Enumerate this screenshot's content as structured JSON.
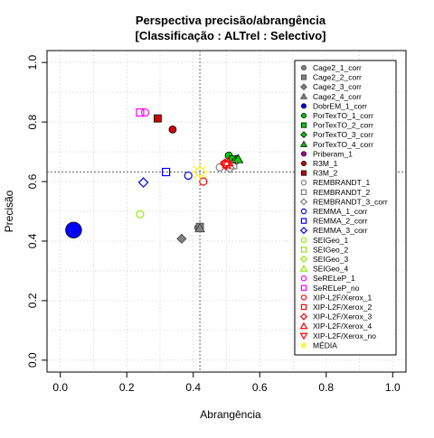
{
  "chart_data": {
    "type": "scatter",
    "title": "Perspectiva precisão/abrangência",
    "subtitle": "[Classificação : ALTrel : Selectivo]",
    "xlabel": "Abrangência",
    "ylabel": "Precisão",
    "xlim": [
      0,
      1
    ],
    "ylim": [
      0,
      1
    ],
    "x_ticks": [
      "0.0",
      "0.2",
      "0.4",
      "0.6",
      "0.8",
      "1.0"
    ],
    "y_ticks": [
      "0.0",
      "0.2",
      "0.4",
      "0.6",
      "0.8",
      "1.0"
    ],
    "grid": true,
    "legend_position": "right",
    "reference_lines": {
      "x": 0.42,
      "y": 0.632
    },
    "series": [
      {
        "name": "Cage2_1_corr",
        "shape": "circle",
        "filled": true,
        "color": "#808080",
        "points": [
          [
            0.415,
            0.445
          ]
        ]
      },
      {
        "name": "Cage2_2_corr",
        "shape": "square",
        "filled": true,
        "color": "#808080",
        "points": [
          [
            0.42,
            0.448
          ]
        ]
      },
      {
        "name": "Cage2_3_corr",
        "shape": "diamond",
        "filled": true,
        "color": "#808080",
        "points": [
          [
            0.365,
            0.408
          ]
        ]
      },
      {
        "name": "Cage2_4_corr",
        "shape": "triangle",
        "filled": true,
        "color": "#808080",
        "points": [
          [
            0.42,
            0.443
          ]
        ]
      },
      {
        "name": "DobrEM_1_corr",
        "shape": "circle",
        "filled": true,
        "color": "#0000ff",
        "size": 2.2,
        "points": [
          [
            0.04,
            0.437
          ]
        ]
      },
      {
        "name": "PorTexTO_1_corr",
        "shape": "circle",
        "filled": true,
        "color": "#00cc00",
        "points": [
          [
            0.507,
            0.687
          ]
        ]
      },
      {
        "name": "PorTexTO_2_corr",
        "shape": "square",
        "filled": true,
        "color": "#00cc00",
        "points": [
          [
            0.52,
            0.675
          ]
        ]
      },
      {
        "name": "PorTexTO_3_corr",
        "shape": "diamond",
        "filled": true,
        "color": "#00cc00",
        "points": [
          [
            0.53,
            0.672
          ]
        ]
      },
      {
        "name": "PorTexTO_4_corr",
        "shape": "triangle",
        "filled": true,
        "color": "#00cc00",
        "points": [
          [
            0.535,
            0.675
          ]
        ]
      },
      {
        "name": "Priberam_1",
        "shape": "circle",
        "filled": true,
        "color": "#aa00aa",
        "points": []
      },
      {
        "name": "R3M_1",
        "shape": "circle",
        "filled": true,
        "color": "#cc0000",
        "points": [
          [
            0.338,
            0.775
          ]
        ]
      },
      {
        "name": "R3M_2",
        "shape": "square",
        "filled": true,
        "color": "#cc0000",
        "points": [
          [
            0.293,
            0.812
          ]
        ]
      },
      {
        "name": "REMBRANDT_1",
        "shape": "circle",
        "filled": false,
        "color": "#808080",
        "points": [
          [
            0.48,
            0.648
          ]
        ]
      },
      {
        "name": "REMBRANDT_2",
        "shape": "square",
        "filled": false,
        "color": "#808080",
        "points": [
          [
            0.52,
            0.655
          ]
        ]
      },
      {
        "name": "REMBRANDT_3_corr",
        "shape": "diamond",
        "filled": false,
        "color": "#808080",
        "points": [
          [
            0.51,
            0.645
          ]
        ]
      },
      {
        "name": "REMMA_1_corr",
        "shape": "circle",
        "filled": false,
        "color": "#0000ff",
        "points": [
          [
            0.385,
            0.62
          ]
        ]
      },
      {
        "name": "REMMA_2_corr",
        "shape": "square",
        "filled": false,
        "color": "#0000ff",
        "points": [
          [
            0.318,
            0.632
          ]
        ]
      },
      {
        "name": "REMMA_3_corr",
        "shape": "diamond",
        "filled": false,
        "color": "#0000ff",
        "points": [
          [
            0.25,
            0.597
          ]
        ]
      },
      {
        "name": "SEIGeo_1",
        "shape": "circle",
        "filled": false,
        "color": "#88ee00",
        "points": [
          [
            0.24,
            0.49
          ]
        ]
      },
      {
        "name": "SEIGeo_2",
        "shape": "square",
        "filled": false,
        "color": "#88ee00",
        "points": []
      },
      {
        "name": "SEIGeo_3",
        "shape": "diamond",
        "filled": false,
        "color": "#88ee00",
        "points": []
      },
      {
        "name": "SEIGeo_4",
        "shape": "triangle",
        "filled": false,
        "color": "#88ee00",
        "points": []
      },
      {
        "name": "SeRELeP_1",
        "shape": "circle",
        "filled": false,
        "color": "#ff00ff",
        "points": [
          [
            0.255,
            0.832
          ]
        ]
      },
      {
        "name": "SeRELeP_no",
        "shape": "square",
        "filled": false,
        "color": "#ff00ff",
        "points": [
          [
            0.24,
            0.832
          ]
        ]
      },
      {
        "name": "XIP-L2F/Xerox_1",
        "shape": "circle",
        "filled": false,
        "color": "#ff0000",
        "points": [
          [
            0.43,
            0.6
          ]
        ]
      },
      {
        "name": "XIP-L2F/Xerox_2",
        "shape": "square",
        "filled": false,
        "color": "#ff0000",
        "points": [
          [
            0.5,
            0.658
          ]
        ]
      },
      {
        "name": "XIP-L2F/Xerox_3",
        "shape": "diamond",
        "filled": false,
        "color": "#ff0000",
        "points": [
          [
            0.495,
            0.66
          ]
        ]
      },
      {
        "name": "XIP-L2F/Xerox_4",
        "shape": "triangle",
        "filled": false,
        "color": "#ff0000",
        "points": [
          [
            0.505,
            0.665
          ]
        ]
      },
      {
        "name": "XIP-L2F/Xerox_no",
        "shape": "triangle-down",
        "filled": false,
        "color": "#ff0000",
        "points": [
          [
            0.498,
            0.655
          ]
        ]
      },
      {
        "name": "MÉDIA",
        "shape": "sun",
        "filled": false,
        "color": "#ffee00",
        "size": 2.0,
        "points": [
          [
            0.42,
            0.632
          ]
        ]
      }
    ]
  }
}
